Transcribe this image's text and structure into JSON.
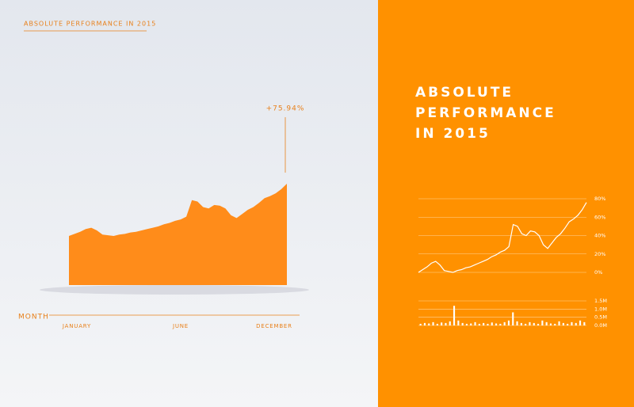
{
  "chart_data": [
    {
      "type": "area",
      "title": "ABSOLUTE PERFORMANCE IN 2015",
      "x_label": "MONTH",
      "annotation": "+75.94%",
      "color": "#ff8c1a",
      "categories": [
        "JANUARY",
        null,
        null,
        null,
        null,
        null,
        null,
        null,
        null,
        null,
        null,
        null,
        null,
        null,
        null,
        null,
        null,
        null,
        null,
        null,
        "JUNE",
        null,
        null,
        null,
        null,
        null,
        null,
        null,
        null,
        null,
        null,
        null,
        null,
        null,
        null,
        null,
        null,
        null,
        null,
        "DECEMBER"
      ],
      "values": [
        0,
        3,
        6,
        10,
        12,
        8,
        2,
        1,
        0,
        2,
        3,
        5,
        6,
        8,
        10,
        12,
        14,
        17,
        19,
        22,
        24,
        28,
        52,
        50,
        42,
        40,
        45,
        44,
        40,
        30,
        26,
        32,
        38,
        42,
        48,
        55,
        58,
        62,
        68,
        75.94
      ]
    },
    {
      "type": "line",
      "title": "ABSOLUTE PERFORMANCE IN 2015",
      "color": "#ffffff",
      "values": [
        0,
        3,
        6,
        10,
        12,
        8,
        2,
        1,
        0,
        2,
        3,
        5,
        6,
        8,
        10,
        12,
        14,
        17,
        19,
        22,
        24,
        28,
        52,
        50,
        42,
        40,
        45,
        44,
        40,
        30,
        26,
        32,
        38,
        42,
        48,
        55,
        58,
        62,
        68,
        75.94
      ],
      "ylim": [
        0,
        80
      ],
      "yticks": [
        {
          "value": 0,
          "label": "0%"
        },
        {
          "value": 20,
          "label": "20%"
        },
        {
          "value": 40,
          "label": "40%"
        },
        {
          "value": 60,
          "label": "60%"
        },
        {
          "value": 80,
          "label": "80%"
        }
      ],
      "grid": true
    },
    {
      "type": "bar",
      "color": "#ffffff",
      "values": [
        0.1,
        0.15,
        0.12,
        0.2,
        0.1,
        0.18,
        0.15,
        0.25,
        1.2,
        0.3,
        0.15,
        0.1,
        0.12,
        0.2,
        0.1,
        0.15,
        0.1,
        0.18,
        0.12,
        0.1,
        0.2,
        0.3,
        0.8,
        0.25,
        0.15,
        0.1,
        0.2,
        0.15,
        0.1,
        0.3,
        0.2,
        0.12,
        0.1,
        0.25,
        0.15,
        0.1,
        0.2,
        0.15,
        0.3,
        0.2
      ],
      "ylim": [
        0,
        1.5
      ],
      "yticks": [
        {
          "value": 0,
          "label": "0.0M"
        },
        {
          "value": 0.5,
          "label": "0.5M"
        },
        {
          "value": 1,
          "label": "1.0M"
        },
        {
          "value": 1.5,
          "label": "1.5M"
        }
      ],
      "grid": true
    }
  ]
}
